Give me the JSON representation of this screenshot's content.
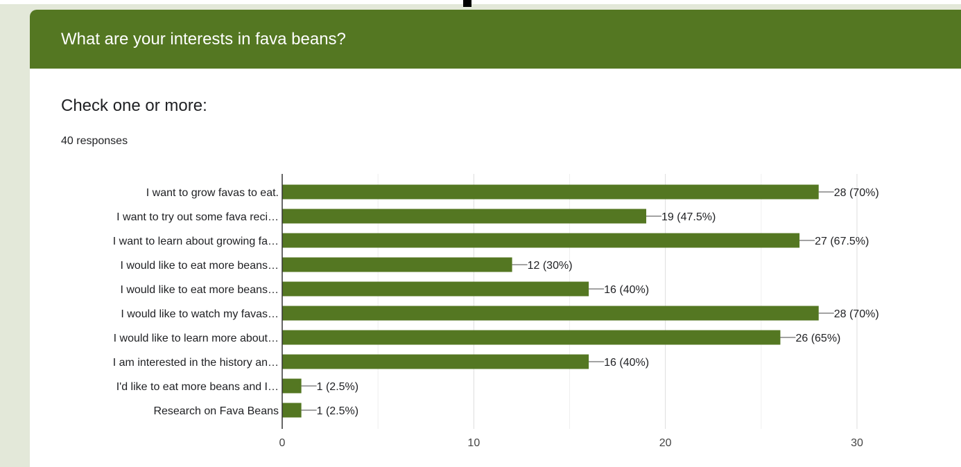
{
  "header": {
    "title": "What are your interests in fava beans?"
  },
  "question": {
    "text": "Check one or more:",
    "responses": "40 responses"
  },
  "colors": {
    "accent": "#547722",
    "bar": "#547722",
    "background": "#e3e8d9"
  },
  "chart_data": {
    "type": "bar",
    "orientation": "horizontal",
    "categories": [
      "I want to grow favas to eat.",
      "I want to try out some fava reci…",
      "I want to learn about growing fa…",
      "I would like to eat more beans…",
      "I would like to eat more beans…",
      "I would like to watch my favas…",
      "I would like to learn more about…",
      "I am interested in the history an…",
      "I'd like to eat more beans and I…",
      "Research on Fava Beans"
    ],
    "values": [
      28,
      19,
      27,
      12,
      16,
      28,
      26,
      16,
      1,
      1
    ],
    "value_labels": [
      "28 (70%)",
      "19 (47.5%)",
      "27 (67.5%)",
      "12 (30%)",
      "16 (40%)",
      "28 (70%)",
      "26 (65%)",
      "16 (40%)",
      "1 (2.5%)",
      "1 (2.5%)"
    ],
    "xlim": [
      0,
      30
    ],
    "x_ticks": [
      0,
      10,
      20,
      30
    ],
    "grid": true
  }
}
